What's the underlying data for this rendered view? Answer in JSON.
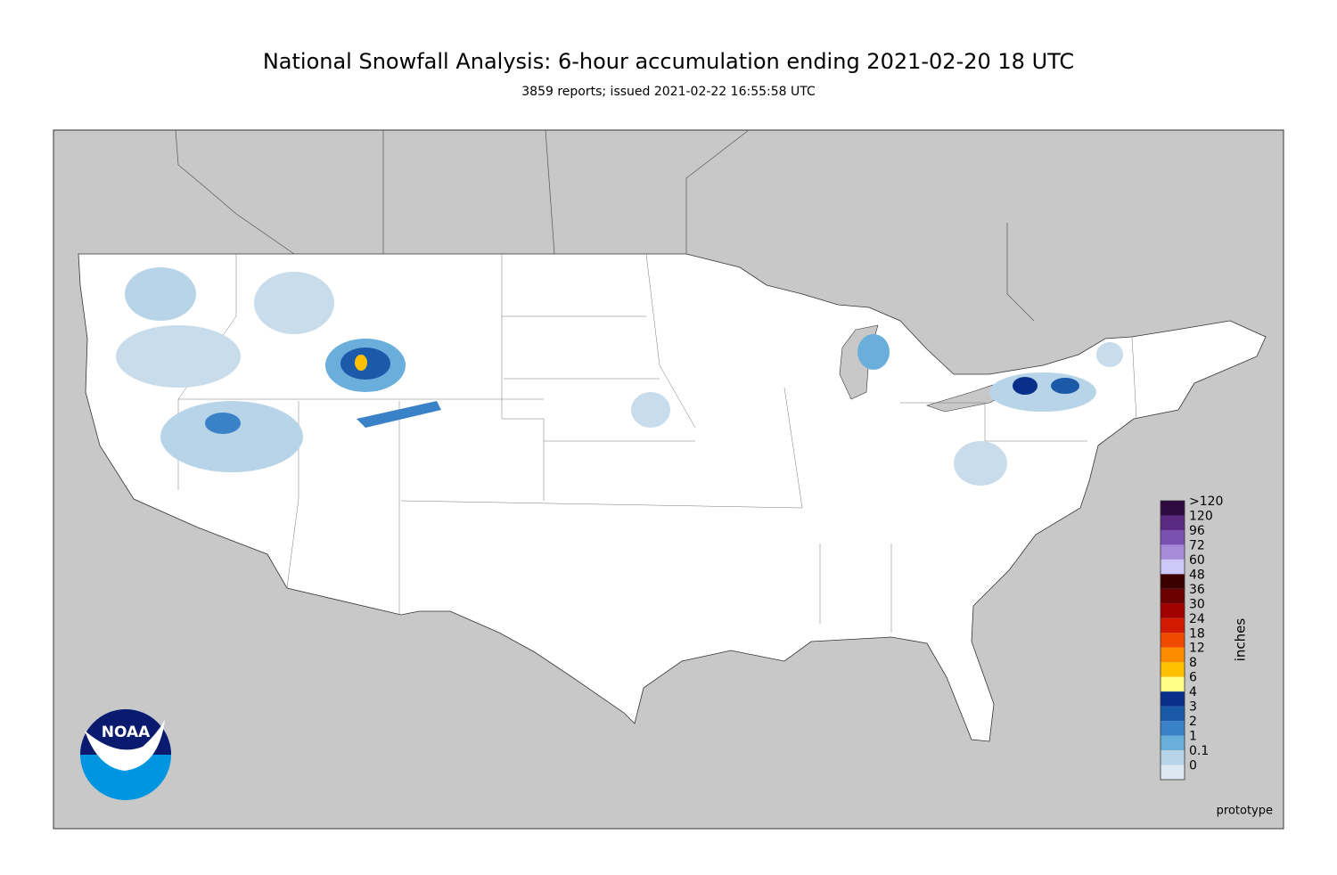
{
  "header": {
    "title": "National Snowfall Analysis: 6-hour accumulation ending 2021-02-20 18 UTC",
    "subtitle": "3859 reports; issued 2021-02-22 16:55:58 UTC"
  },
  "legend": {
    "title": "inches",
    "items": [
      {
        "label": ">120",
        "color": "#2d0a40"
      },
      {
        "label": "120",
        "color": "#5a2a80"
      },
      {
        "label": "96",
        "color": "#7a50b0"
      },
      {
        "label": "72",
        "color": "#a78ad8"
      },
      {
        "label": "60",
        "color": "#cdc8f8"
      },
      {
        "label": "48",
        "color": "#3a0000"
      },
      {
        "label": "36",
        "color": "#6a0000"
      },
      {
        "label": "30",
        "color": "#a00000"
      },
      {
        "label": "24",
        "color": "#d21a00"
      },
      {
        "label": "18",
        "color": "#f04a00"
      },
      {
        "label": "12",
        "color": "#ff8c00"
      },
      {
        "label": "8",
        "color": "#ffc000"
      },
      {
        "label": "6",
        "color": "#ffff88"
      },
      {
        "label": "4",
        "color": "#0a2f8a"
      },
      {
        "label": "3",
        "color": "#1a5aa8"
      },
      {
        "label": "2",
        "color": "#3a82c8"
      },
      {
        "label": "1",
        "color": "#6aaedc"
      },
      {
        "label": "0.1",
        "color": "#b8d4e8"
      },
      {
        "label": "0",
        "color": "#dde8f2"
      }
    ]
  },
  "logo": {
    "text": "NOAA"
  },
  "footer": {
    "note": "prototype"
  }
}
